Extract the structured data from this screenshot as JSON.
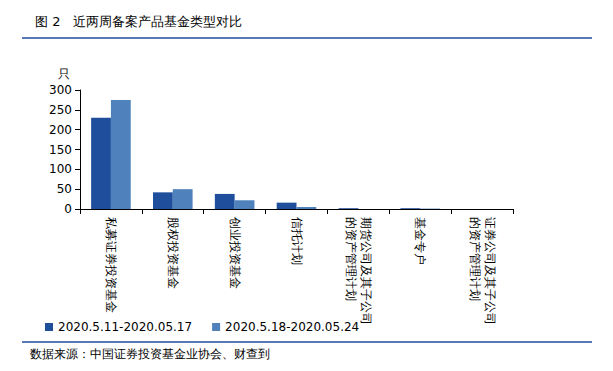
{
  "chart_data": {
    "type": "bar",
    "title": "图 2　近两周备案产品基金类型对比",
    "y_label": "只",
    "annotations": [
      "数据来源：中国证券投资基金业协会、财查到"
    ],
    "categories": [
      "私募证券投资基金",
      "股权投资基金",
      "创业投资基金",
      "信托计划",
      "期货公司及其子公司的资产管理计划",
      "基金专户",
      "证券公司及其子公司的资产管理计划"
    ],
    "series": [
      {
        "name": "2020.5.11-2020.05.17",
        "color": "#1f4e9c",
        "values": [
          230,
          42,
          38,
          16,
          2,
          2,
          0
        ]
      },
      {
        "name": "2020.5.18-2020.05.24",
        "color": "#4f81bd",
        "values": [
          275,
          50,
          22,
          5,
          0,
          1,
          0
        ]
      }
    ],
    "ylim": [
      0,
      300
    ],
    "yticks": [
      0,
      50,
      100,
      150,
      200,
      250,
      300
    ],
    "grid": false,
    "legend": "bottom"
  }
}
